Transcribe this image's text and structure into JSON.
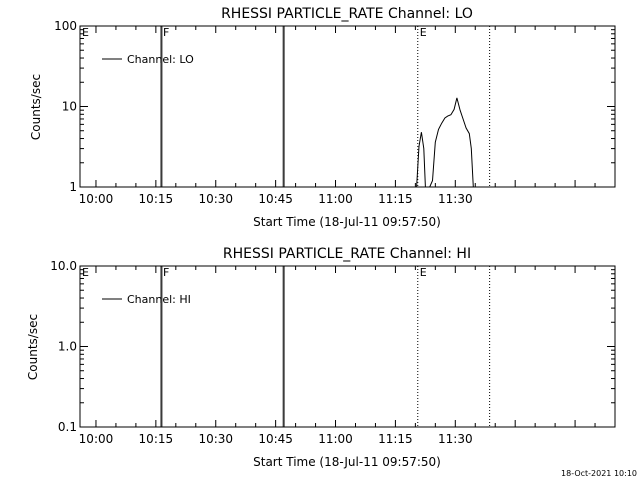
{
  "footer_timestamp": "18-Oct-2021 10:10",
  "chart_data": [
    {
      "type": "line",
      "title": "RHESSI PARTICLE_RATE Channel: LO",
      "xlabel": "Start Time (18-Jul-11 09:57:50)",
      "ylabel": "Counts/sec",
      "yscale": "log",
      "ylim": [
        1,
        100
      ],
      "xlim_min": [
        -4,
        130
      ],
      "xtick_min": [
        0,
        15,
        30,
        45,
        60,
        75,
        90
      ],
      "xtick_labels": [
        "10:00",
        "10:15",
        "10:30",
        "10:45",
        "11:00",
        "11:15",
        "11:30"
      ],
      "ytick_values": [
        1,
        10,
        100
      ],
      "ytick_labels": [
        "1",
        "10",
        "100"
      ],
      "legend": {
        "label": "Channel: LO",
        "position": "top-left"
      },
      "markers": [
        {
          "time_min": -4,
          "label": "E",
          "style": "dotted"
        },
        {
          "time_min": 16.3,
          "label": "F",
          "style": "solid"
        },
        {
          "time_min": 46.9,
          "label": "",
          "style": "solid"
        },
        {
          "time_min": 80.6,
          "label": "E",
          "style": "dotted"
        },
        {
          "time_min": 98.6,
          "label": "",
          "style": "dotted"
        }
      ],
      "series": [
        {
          "x": [
            80.3,
            80.9,
            81.5,
            82.1,
            82.5,
            83.1,
            83.6,
            84.3,
            85.0,
            85.8,
            86.6,
            87.4,
            88.1,
            88.9,
            89.7,
            90.4,
            91.2,
            91.9,
            92.7,
            93.5,
            94.0,
            94.5
          ],
          "y": [
            1,
            3.2,
            4.8,
            3.0,
            1,
            1,
            1,
            1.2,
            3.6,
            5.2,
            6.2,
            7.2,
            7.6,
            7.9,
            9.2,
            12.8,
            9.0,
            7.1,
            5.4,
            4.6,
            3.0,
            1
          ]
        }
      ]
    },
    {
      "type": "line",
      "title": "RHESSI PARTICLE_RATE Channel: HI",
      "xlabel": "Start Time (18-Jul-11 09:57:50)",
      "ylabel": "Counts/sec",
      "yscale": "log",
      "ylim": [
        0.1,
        10
      ],
      "xlim_min": [
        -4,
        130
      ],
      "xtick_min": [
        0,
        15,
        30,
        45,
        60,
        75,
        90
      ],
      "xtick_labels": [
        "10:00",
        "10:15",
        "10:30",
        "10:45",
        "11:00",
        "11:15",
        "11:30"
      ],
      "ytick_values": [
        0.1,
        1,
        10
      ],
      "ytick_labels": [
        "0.1",
        "1.0",
        "10.0"
      ],
      "legend": {
        "label": "Channel: HI",
        "position": "top-left"
      },
      "markers": [
        {
          "time_min": -4,
          "label": "E",
          "style": "dotted"
        },
        {
          "time_min": 16.3,
          "label": "F",
          "style": "solid"
        },
        {
          "time_min": 46.9,
          "label": "",
          "style": "solid"
        },
        {
          "time_min": 80.6,
          "label": "E",
          "style": "dotted"
        },
        {
          "time_min": 98.6,
          "label": "",
          "style": "dotted"
        }
      ],
      "series": [
        {
          "x": [],
          "y": []
        }
      ]
    }
  ]
}
